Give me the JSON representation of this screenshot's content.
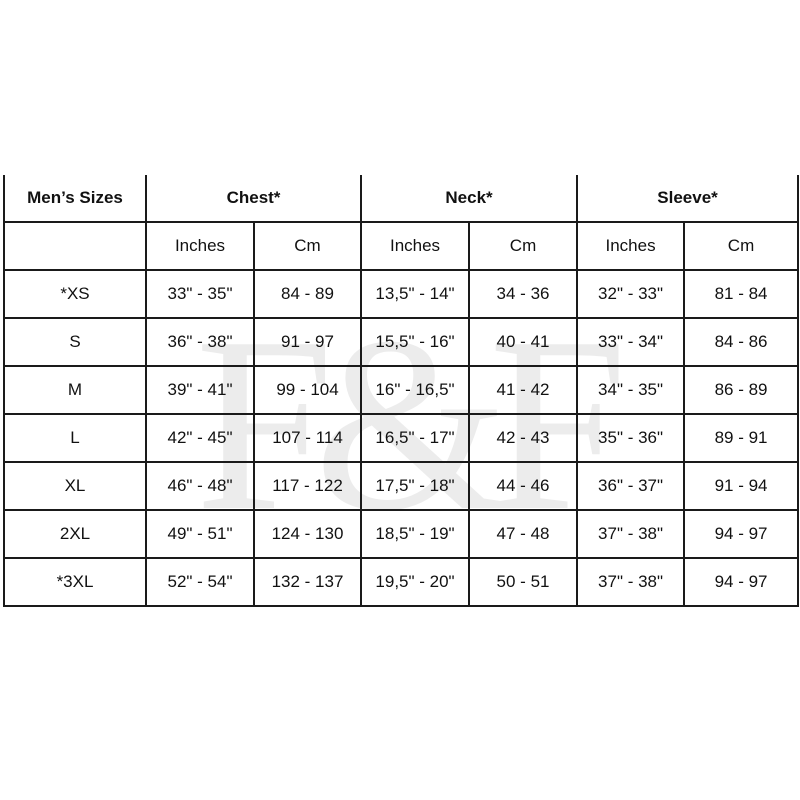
{
  "watermark": "F&F",
  "header": {
    "sizes": "Men’s Sizes",
    "groups": [
      "Chest*",
      "Neck*",
      "Sleeve*"
    ]
  },
  "subheader": [
    "Inches",
    "Cm",
    "Inches",
    "Cm",
    "Inches",
    "Cm"
  ],
  "rows": [
    {
      "size": "*XS",
      "cells": [
        "33\" - 35\"",
        "84 - 89",
        "13,5\" - 14\"",
        "34 - 36",
        "32\" - 33\"",
        "81 - 84"
      ]
    },
    {
      "size": "S",
      "cells": [
        "36\" - 38\"",
        "91 - 97",
        "15,5\" - 16\"",
        "40 - 41",
        "33\" - 34\"",
        "84 - 86"
      ]
    },
    {
      "size": "M",
      "cells": [
        "39\" - 41\"",
        "99 - 104",
        "16\" - 16,5\"",
        "41 - 42",
        "34\" - 35\"",
        "86 - 89"
      ]
    },
    {
      "size": "L",
      "cells": [
        "42\" - 45\"",
        "107 - 114",
        "16,5\" - 17\"",
        "42 - 43",
        "35\" - 36\"",
        "89 - 91"
      ]
    },
    {
      "size": "XL",
      "cells": [
        "46\" - 48\"",
        "117 - 122",
        "17,5\" - 18\"",
        "44 - 46",
        "36\" - 37\"",
        "91 - 94"
      ]
    },
    {
      "size": "2XL",
      "cells": [
        "49\" - 51\"",
        "124 - 130",
        "18,5\" - 19\"",
        "47 - 48",
        "37\" - 38\"",
        "94 - 97"
      ]
    },
    {
      "size": "*3XL",
      "cells": [
        "52\" - 54\"",
        "132 - 137",
        "19,5\" - 20\"",
        "50 - 51",
        "37\" - 38\"",
        "94 - 97"
      ]
    }
  ]
}
